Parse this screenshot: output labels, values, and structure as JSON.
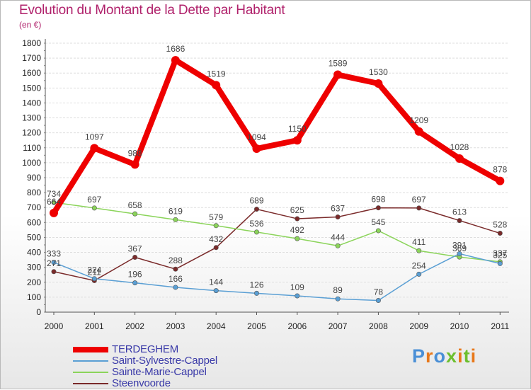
{
  "header": {
    "title": "Evolution du Montant de la Dette par Habitant",
    "subtitle": "(en €)"
  },
  "chart_data": {
    "type": "line",
    "title": "Evolution du Montant de la Dette par Habitant",
    "subtitle": "(en €)",
    "categories": [
      "2000",
      "2001",
      "2002",
      "2003",
      "2004",
      "2005",
      "2006",
      "2007",
      "2008",
      "2009",
      "2010",
      "2011"
    ],
    "ylim": [
      0,
      1800
    ],
    "yticks": [
      0,
      100,
      200,
      300,
      400,
      500,
      600,
      700,
      800,
      900,
      1000,
      1100,
      1200,
      1300,
      1400,
      1500,
      1600,
      1700,
      1800
    ],
    "grid": "horizontal",
    "legend_position": "bottom-left",
    "series": [
      {
        "name": "TERDEGHEM",
        "color": "#ee0000",
        "values": [
          664,
          1097,
          988,
          1686,
          1519,
          1094,
          1150,
          1589,
          1530,
          1209,
          1028,
          878
        ]
      },
      {
        "name": "Saint-Sylvestre-Cappel",
        "color": "#5a9fd4",
        "values": [
          333,
          224,
          196,
          166,
          144,
          126,
          109,
          89,
          78,
          254,
          391,
          325
        ]
      },
      {
        "name": "Sainte-Marie-Cappel",
        "color": "#8bd45a",
        "values": [
          734,
          697,
          658,
          619,
          579,
          536,
          492,
          444,
          545,
          411,
          369,
          337
        ]
      },
      {
        "name": "Steenvoorde",
        "color": "#7a2a2a",
        "values": [
          271,
          211,
          367,
          288,
          432,
          689,
          625,
          637,
          698,
          697,
          613,
          528
        ]
      }
    ]
  },
  "logo": {
    "letters": [
      "P",
      "r",
      "o",
      "x",
      "i",
      "t",
      "i"
    ],
    "colors": [
      "#4a8fd6",
      "#e8781a",
      "#4a8fd6",
      "#6cbf2e",
      "#e8781a",
      "#6cbf2e",
      "#e8781a"
    ]
  }
}
